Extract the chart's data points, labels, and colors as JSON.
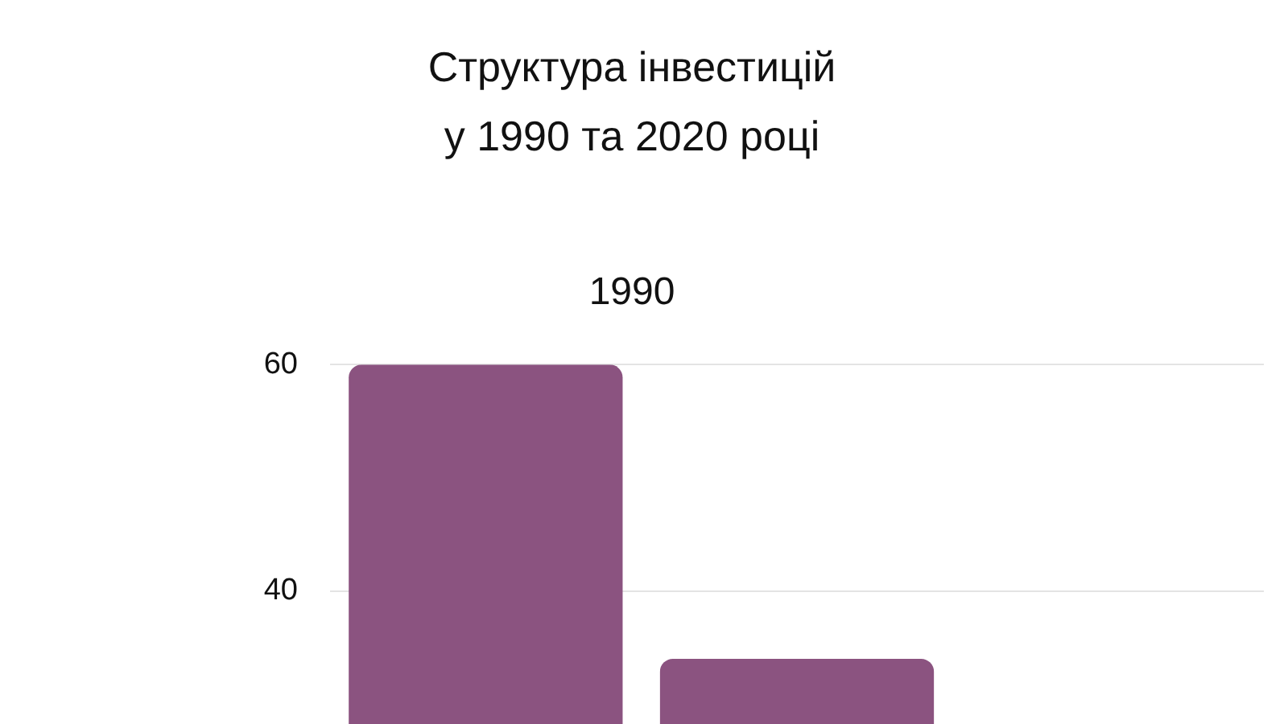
{
  "chart_data": {
    "type": "bar",
    "title": [
      "Структура інвестицій",
      "у 1990 та 2020 році"
    ],
    "subtitle": "1990",
    "categories": [
      null,
      null,
      null
    ],
    "values": [
      60,
      34,
      null
    ],
    "color": "#8b5380",
    "ylim": [
      0,
      60
    ],
    "yticks": [
      40,
      60
    ],
    "grid": "y",
    "legend": false
  }
}
